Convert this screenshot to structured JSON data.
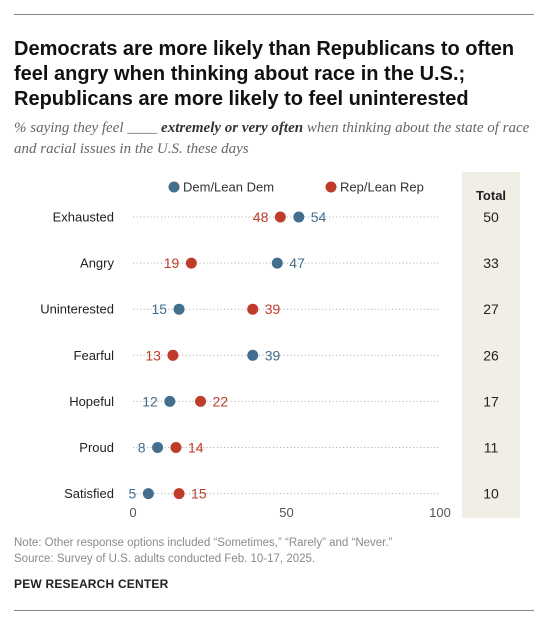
{
  "title": "Democrats are more likely than Republicans to often feel angry when thinking about race in the U.S.; Republicans are more likely to feel uninterested",
  "subtitle": {
    "before": "% saying they feel ____ ",
    "emphasis": "extremely or very often",
    "after": " when thinking about the state of race and racial issues in the U.S. these days"
  },
  "chart_data": {
    "type": "scatter",
    "categories": [
      "Exhausted",
      "Angry",
      "Uninterested",
      "Fearful",
      "Hopeful",
      "Proud",
      "Satisfied"
    ],
    "series": [
      {
        "name": "Dem/Lean Dem",
        "values": [
          54,
          47,
          15,
          39,
          12,
          8,
          5
        ],
        "color": "#436e8e"
      },
      {
        "name": "Rep/Lean Rep",
        "values": [
          48,
          19,
          39,
          13,
          22,
          14,
          15
        ],
        "color": "#bf3b2a"
      }
    ],
    "total": {
      "header": "Total",
      "values": [
        50,
        33,
        27,
        26,
        17,
        11,
        10
      ]
    },
    "xlim": [
      0,
      100
    ],
    "xticks": [
      0,
      50,
      100
    ],
    "legend": "top",
    "grid": false
  },
  "note": "Note: Other response options included “Sometimes,” “Rarely” and “Never.”",
  "source": "Source: Survey of U.S. adults conducted Feb. 10-17, 2025.",
  "org": "PEW RESEARCH CENTER"
}
